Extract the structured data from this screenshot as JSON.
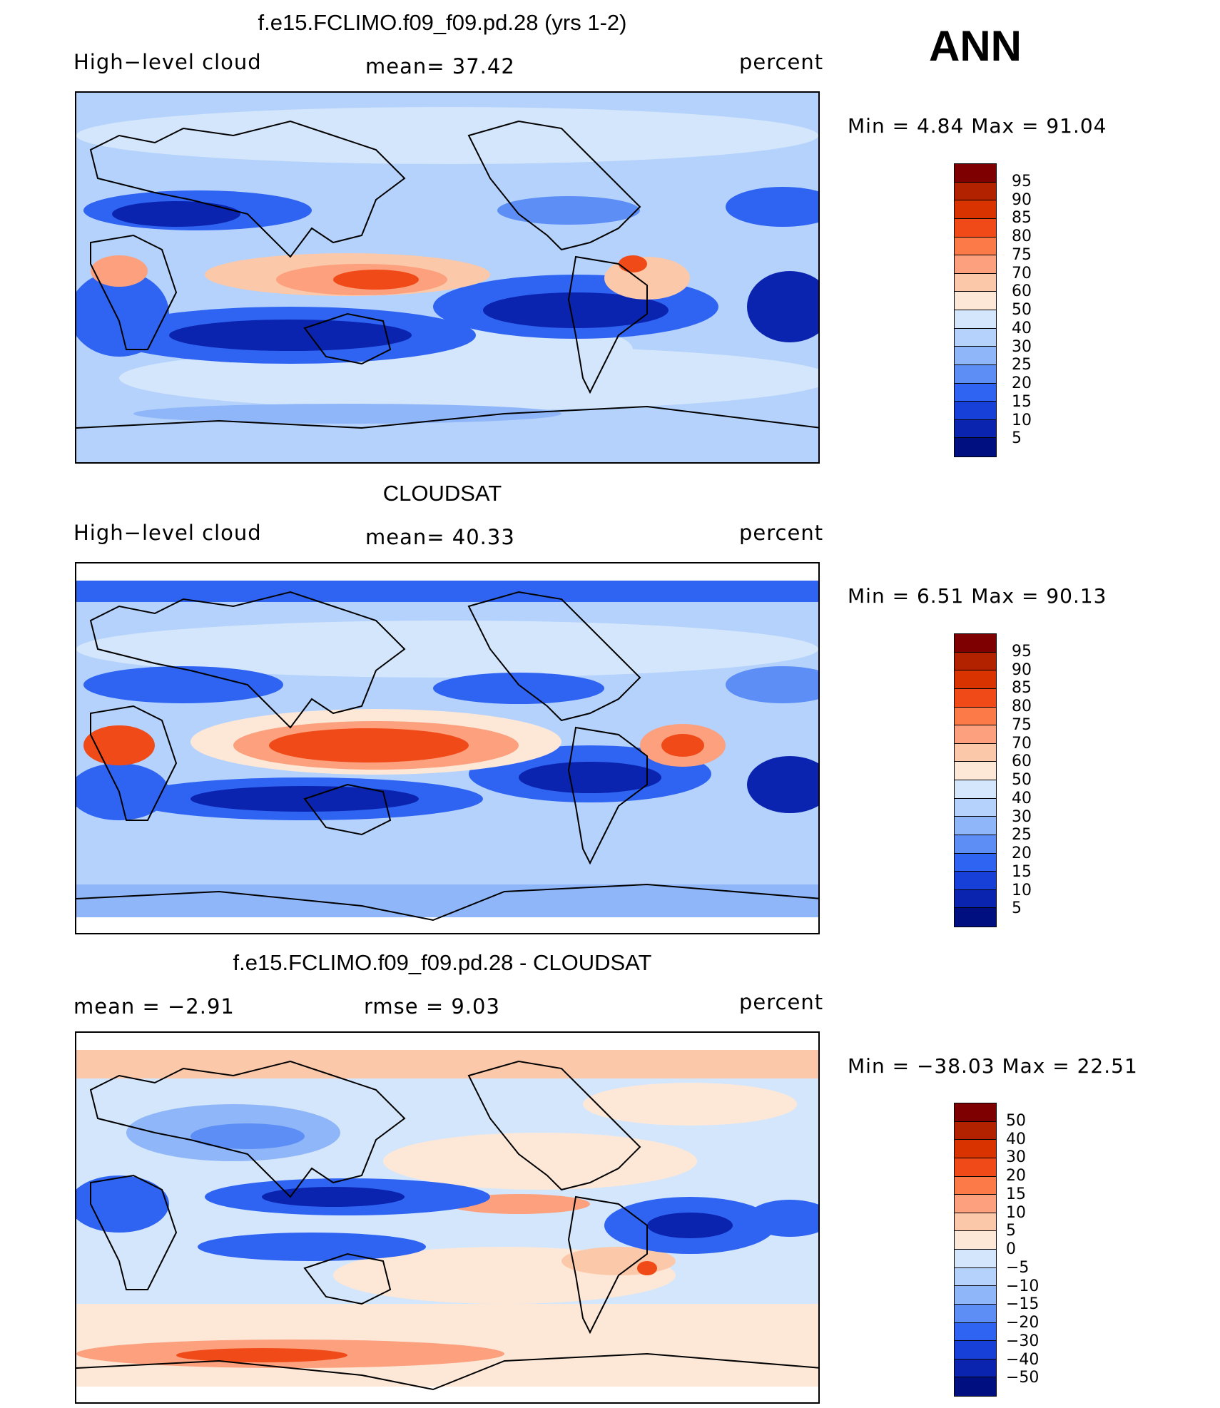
{
  "season": "ANN",
  "panels": [
    {
      "title": "f.e15.FCLIMO.f09_f09.pd.28 (yrs 1-2)",
      "left_label": "High−level cloud",
      "center_label": "mean=   37.42",
      "right_label": "percent",
      "minmax": "Min =    4.84  Max =    91.04",
      "colorbar_labels": [
        "95",
        "90",
        "85",
        "80",
        "75",
        "70",
        "60",
        "50",
        "40",
        "30",
        "25",
        "20",
        "15",
        "10",
        "5"
      ],
      "colors": [
        "#7f0000",
        "#b22200",
        "#d93300",
        "#f04a18",
        "#fb7a48",
        "#fca07e",
        "#fcc8aa",
        "#fde8d8",
        "#d4e6fb",
        "#b4d2fb",
        "#8fb6f9",
        "#5c8ef6",
        "#2f64f2",
        "#1740d8",
        "#0a24b0",
        "#000f80"
      ]
    },
    {
      "title": "CLOUDSAT",
      "left_label": "High−level cloud",
      "center_label": "mean=   40.33",
      "right_label": "percent",
      "minmax": "Min =    6.51  Max =    90.13",
      "colorbar_labels": [
        "95",
        "90",
        "85",
        "80",
        "75",
        "70",
        "60",
        "50",
        "40",
        "30",
        "25",
        "20",
        "15",
        "10",
        "5"
      ],
      "colors": [
        "#7f0000",
        "#b22200",
        "#d93300",
        "#f04a18",
        "#fb7a48",
        "#fca07e",
        "#fcc8aa",
        "#fde8d8",
        "#d4e6fb",
        "#b4d2fb",
        "#8fb6f9",
        "#5c8ef6",
        "#2f64f2",
        "#1740d8",
        "#0a24b0",
        "#000f80"
      ]
    },
    {
      "title": "f.e15.FCLIMO.f09_f09.pd.28 - CLOUDSAT",
      "left_label": "mean =    −2.91",
      "center_label": "rmse =     9.03",
      "right_label": "percent",
      "minmax": "Min = −38.03  Max =    22.51",
      "colorbar_labels": [
        "50",
        "40",
        "30",
        "20",
        "15",
        "10",
        "5",
        "0",
        "−5",
        "−10",
        "−15",
        "−20",
        "−30",
        "−40",
        "−50"
      ],
      "colors": [
        "#7f0000",
        "#b22200",
        "#d93300",
        "#f04a18",
        "#fb7a48",
        "#fca07e",
        "#fcc8aa",
        "#fde8d8",
        "#d4e6fb",
        "#b4d2fb",
        "#8fb6f9",
        "#5c8ef6",
        "#2f64f2",
        "#1740d8",
        "#0a24b0",
        "#000f80"
      ]
    }
  ]
}
